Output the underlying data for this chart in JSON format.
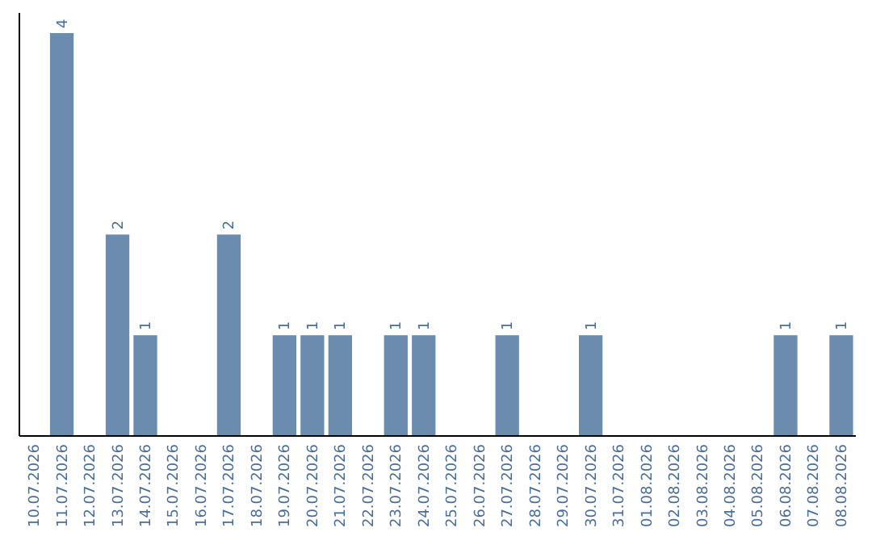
{
  "chart_data": {
    "type": "bar",
    "categories": [
      "10.07.2026",
      "11.07.2026",
      "12.07.2026",
      "13.07.2026",
      "14.07.2026",
      "15.07.2026",
      "16.07.2026",
      "17.07.2026",
      "18.07.2026",
      "19.07.2026",
      "20.07.2026",
      "21.07.2026",
      "22.07.2026",
      "23.07.2026",
      "24.07.2026",
      "25.07.2026",
      "26.07.2026",
      "27.07.2026",
      "28.07.2026",
      "29.07.2026",
      "30.07.2026",
      "31.07.2026",
      "01.08.2026",
      "02.08.2026",
      "03.08.2026",
      "04.08.2026",
      "05.08.2026",
      "06.08.2026",
      "07.08.2026",
      "08.08.2026"
    ],
    "values": [
      0,
      4,
      0,
      2,
      1,
      0,
      0,
      2,
      0,
      1,
      1,
      1,
      0,
      1,
      1,
      0,
      0,
      1,
      0,
      0,
      1,
      0,
      0,
      0,
      0,
      0,
      0,
      1,
      0,
      1
    ],
    "value_labels": [
      null,
      "4",
      null,
      "2",
      "1",
      null,
      null,
      "2",
      null,
      "1",
      "1",
      "1",
      null,
      "1",
      "1",
      null,
      null,
      "1",
      null,
      null,
      "1",
      null,
      null,
      null,
      null,
      null,
      null,
      "1",
      null,
      "1"
    ],
    "color": "#6b8cae"
  }
}
